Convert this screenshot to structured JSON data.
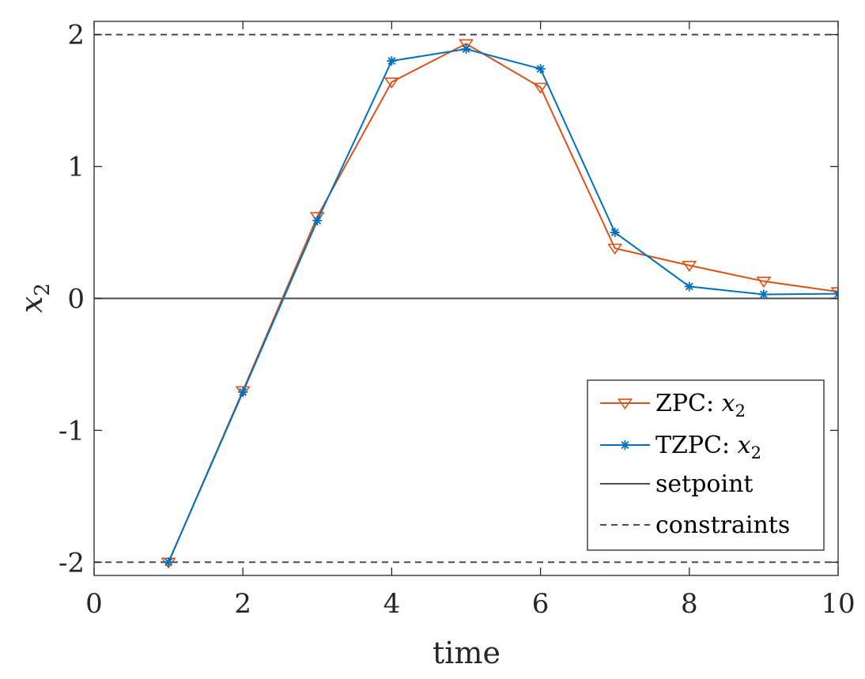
{
  "chart_data": {
    "type": "line",
    "title": "",
    "xlabel": "time",
    "ylabel": {
      "base": "x",
      "sub": "2"
    },
    "xlim": [
      0,
      10
    ],
    "ylim": [
      -2.1,
      2.1
    ],
    "xticks": [
      "0",
      "2",
      "4",
      "6",
      "8",
      "10"
    ],
    "yticks": [
      "-2",
      "-1",
      "0",
      "1",
      "2"
    ],
    "x": [
      1,
      2,
      3,
      4,
      5,
      6,
      7,
      8,
      9,
      10
    ],
    "series": [
      {
        "name": {
          "text": "ZPC: ",
          "math_base": "x",
          "math_sub": "2"
        },
        "color": "#D95319",
        "marker": "triangle-down",
        "values": [
          -2.0,
          -0.7,
          0.62,
          1.64,
          1.93,
          1.6,
          0.38,
          0.25,
          0.13,
          0.05
        ]
      },
      {
        "name": {
          "text": "TZPC: ",
          "math_base": "x",
          "math_sub": "2"
        },
        "color": "#0072BD",
        "marker": "asterisk",
        "values": [
          -2.0,
          -0.71,
          0.59,
          1.8,
          1.89,
          1.74,
          0.5,
          0.09,
          0.03,
          0.035
        ]
      }
    ],
    "reference_lines": [
      {
        "name": "setpoint",
        "value": 0,
        "style": "solid",
        "color": "#4D4D4D"
      },
      {
        "name": "constraints",
        "values": [
          2,
          -2
        ],
        "style": "dashed",
        "color": "#4D4D4D"
      }
    ],
    "legend_position": "lower-right",
    "grid": false
  }
}
